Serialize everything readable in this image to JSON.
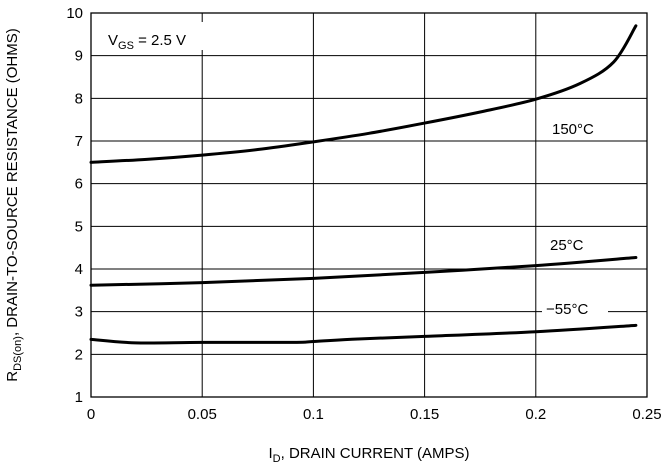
{
  "chart_data": {
    "type": "line",
    "title": "",
    "xlabel": {
      "main": "I",
      "sub": "D",
      "rest": ", DRAIN CURRENT (AMPS)"
    },
    "ylabel": {
      "main": "R",
      "sub": "DS(on)",
      "rest": ", DRAIN-TO-SOURCE RESISTANCE (OHMS)"
    },
    "xlim": [
      0,
      0.25
    ],
    "ylim": [
      1,
      10
    ],
    "x_ticks": [
      "0",
      "0.05",
      "0.1",
      "0.15",
      "0.2",
      "0.25"
    ],
    "y_ticks": [
      "1",
      "2",
      "3",
      "4",
      "5",
      "6",
      "7",
      "8",
      "9",
      "10"
    ],
    "grid": true,
    "condition": {
      "main": "V",
      "sub": "GS",
      "rest": " = 2.5  V"
    },
    "series": [
      {
        "name": "150°C",
        "x": [
          0,
          0.025,
          0.05,
          0.075,
          0.1,
          0.125,
          0.15,
          0.175,
          0.2,
          0.22,
          0.235,
          0.245
        ],
        "values": [
          6.5,
          6.57,
          6.67,
          6.8,
          6.98,
          7.18,
          7.42,
          7.68,
          7.98,
          8.35,
          8.85,
          9.7
        ]
      },
      {
        "name": "25°C",
        "x": [
          0,
          0.05,
          0.1,
          0.15,
          0.2,
          0.245
        ],
        "values": [
          3.62,
          3.68,
          3.78,
          3.92,
          4.08,
          4.27
        ]
      },
      {
        "name": "−55°C",
        "x": [
          0,
          0.02,
          0.05,
          0.09,
          0.1,
          0.12,
          0.15,
          0.2,
          0.245
        ],
        "values": [
          2.35,
          2.27,
          2.28,
          2.28,
          2.3,
          2.36,
          2.42,
          2.53,
          2.68
        ]
      }
    ]
  }
}
